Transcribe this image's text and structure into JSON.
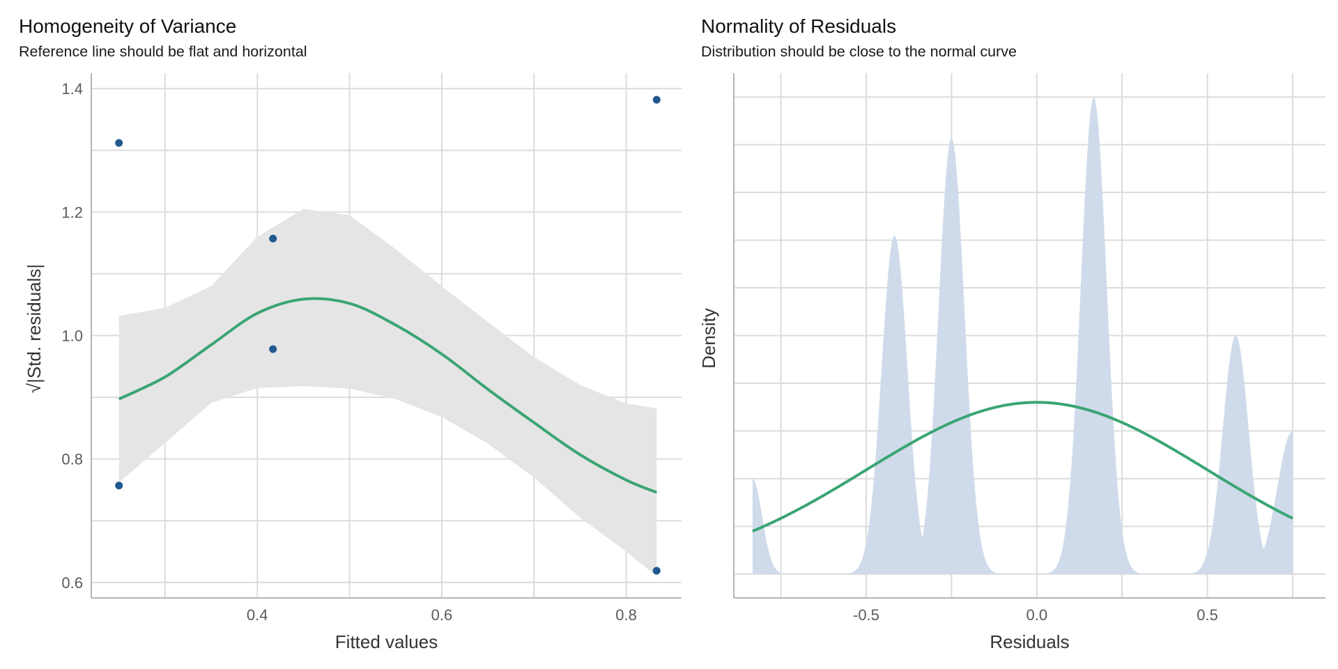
{
  "colors": {
    "points": "#21588f",
    "fit_line": "#3aa573",
    "ribbon": "#e5e5e5",
    "density_fill": "#cfdbea",
    "grid": "#dcdcdc",
    "axis_line": "#b5b5b5"
  },
  "chart_data": [
    {
      "type": "scatter",
      "title": "Homogeneity of Variance",
      "subtitle": "Reference line should be flat and horizontal",
      "xlabel": "Fitted values",
      "ylabel": "√|Std. residuals|",
      "xlim": [
        0.22,
        0.86
      ],
      "ylim": [
        0.575,
        1.425
      ],
      "xticks": [
        0.4,
        0.6,
        0.8
      ],
      "xtick_labels": [
        "0.4",
        "0.6",
        "0.8"
      ],
      "yticks": [
        0.6,
        0.8,
        1.0,
        1.2,
        1.4
      ],
      "ytick_labels": [
        "0.6",
        "0.8",
        "1.0",
        "1.2",
        "1.4"
      ],
      "grid": true,
      "points": [
        {
          "x": 0.25,
          "y": 1.312
        },
        {
          "x": 0.25,
          "y": 0.757
        },
        {
          "x": 0.417,
          "y": 1.157
        },
        {
          "x": 0.417,
          "y": 0.978
        },
        {
          "x": 0.833,
          "y": 1.382
        },
        {
          "x": 0.833,
          "y": 0.619
        }
      ],
      "smooth": {
        "x": [
          0.25,
          0.3,
          0.35,
          0.4,
          0.45,
          0.5,
          0.55,
          0.6,
          0.65,
          0.7,
          0.75,
          0.8,
          0.833
        ],
        "y": [
          0.897,
          0.933,
          0.985,
          1.036,
          1.059,
          1.052,
          1.017,
          0.97,
          0.913,
          0.859,
          0.807,
          0.766,
          0.746
        ],
        "ci_lower": [
          0.762,
          0.826,
          0.891,
          0.915,
          0.918,
          0.914,
          0.897,
          0.868,
          0.825,
          0.77,
          0.705,
          0.65,
          0.61
        ],
        "ci_upper": [
          1.032,
          1.045,
          1.08,
          1.16,
          1.205,
          1.195,
          1.14,
          1.08,
          1.022,
          0.965,
          0.92,
          0.89,
          0.882
        ]
      }
    },
    {
      "type": "area",
      "title": "Normality of Residuals",
      "subtitle": "Distribution should be close to the normal curve",
      "xlabel": "Residuals",
      "ylabel": "Density",
      "xlim": [
        -0.888,
        0.846
      ],
      "ylim": [
        -0.05,
        1.05
      ],
      "xticks": [
        -0.5,
        0.0,
        0.5
      ],
      "xtick_labels": [
        "-0.5",
        "0.0",
        "0.5"
      ],
      "yticks_unlabeled": 11,
      "grid": true,
      "density_peaks": [
        {
          "center": -0.833,
          "height": 0.2,
          "width": 0.028
        },
        {
          "center": -0.417,
          "height": 0.71,
          "width": 0.038
        },
        {
          "center": -0.25,
          "height": 0.915,
          "width": 0.038
        },
        {
          "center": 0.167,
          "height": 1.0,
          "width": 0.038
        },
        {
          "center": 0.583,
          "height": 0.5,
          "width": 0.038
        },
        {
          "center": 0.75,
          "height": 0.3,
          "width": 0.045
        }
      ],
      "density_range": [
        -0.833,
        0.75
      ],
      "normal_curve": {
        "mean": 0.0,
        "sd": 0.5,
        "peak_height": 0.36
      }
    }
  ]
}
